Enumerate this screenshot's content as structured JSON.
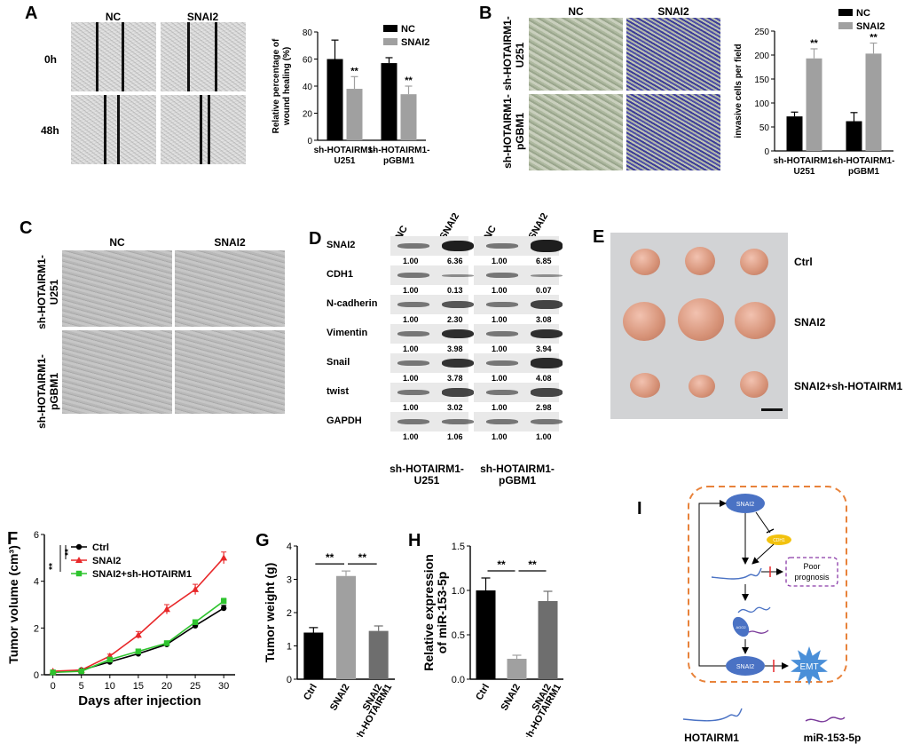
{
  "panels": {
    "A": {
      "label": "A",
      "col_headers": [
        "NC",
        "SNAI2"
      ],
      "row_headers": [
        "0h",
        "48h"
      ],
      "chart_data": {
        "type": "bar",
        "categories": [
          "sh-HOTAIRM1-\nU251",
          "sh-HOTAIRM1-\npGBM1"
        ],
        "categories_lines": [
          [
            "sh-HOTAIRM1-",
            "U251"
          ],
          [
            "sh-HOTAIRM1-",
            "pGBM1"
          ]
        ],
        "series": [
          {
            "name": "NC",
            "values": [
              60,
              57
            ],
            "errors": [
              14,
              4
            ],
            "color": "#000000"
          },
          {
            "name": "SNAI2",
            "values": [
              38,
              34
            ],
            "errors": [
              9,
              6
            ],
            "color": "#a0a0a0"
          }
        ],
        "ylabel_lines": [
          "Relative percentage of",
          "wound healing (%)"
        ],
        "ylim": [
          0,
          80
        ],
        "yticks": [
          0,
          20,
          40,
          60,
          80
        ],
        "significance": [
          "**",
          "**"
        ],
        "legend": "top-right"
      }
    },
    "B": {
      "label": "B",
      "col_headers": [
        "NC",
        "SNAI2"
      ],
      "row_headers": [
        "sh-HOTAIRM1-\nU251",
        "sh-HOTAIRM1-\npGBM1"
      ],
      "row_header_lines": [
        [
          "sh-HOTAIRM1-",
          "U251"
        ],
        [
          "sh-HOTAIRM1-",
          "pGBM1"
        ]
      ],
      "chart_data": {
        "type": "bar",
        "categories_lines": [
          [
            "sh-HOTAIRM1-",
            "U251"
          ],
          [
            "sh-HOTAIRM1-",
            "pGBM1"
          ]
        ],
        "series": [
          {
            "name": "NC",
            "values": [
              72,
              62
            ],
            "errors": [
              9,
              18
            ],
            "color": "#000000"
          },
          {
            "name": "SNAI2",
            "values": [
              193,
              203
            ],
            "errors": [
              20,
              22
            ],
            "color": "#a0a0a0"
          }
        ],
        "ylabel": "invasive cells per field",
        "ylim": [
          0,
          250
        ],
        "yticks": [
          0,
          50,
          100,
          150,
          200,
          250
        ],
        "significance": [
          "**",
          "**"
        ],
        "legend": "top-right"
      }
    },
    "C": {
      "label": "C",
      "col_headers": [
        "NC",
        "SNAI2"
      ],
      "row_header_lines": [
        [
          "sh-HOTAIRM1-",
          "U251"
        ],
        [
          "sh-HOTAIRM1-",
          "pGBM1"
        ]
      ]
    },
    "D": {
      "label": "D",
      "lane_headers": [
        "NC",
        "SNAI2",
        "NC",
        "SNAI2"
      ],
      "proteins": [
        {
          "name": "SNAI2",
          "values": [
            "1.00",
            "6.36",
            "1.00",
            "6.85"
          ]
        },
        {
          "name": "CDH1",
          "values": [
            "1.00",
            "0.13",
            "1.00",
            "0.07"
          ]
        },
        {
          "name": "N-cadherin",
          "values": [
            "1.00",
            "2.30",
            "1.00",
            "3.08"
          ]
        },
        {
          "name": "Vimentin",
          "values": [
            "1.00",
            "3.98",
            "1.00",
            "3.94"
          ]
        },
        {
          "name": "Snail",
          "values": [
            "1.00",
            "3.78",
            "1.00",
            "4.08"
          ]
        },
        {
          "name": "twist",
          "values": [
            "1.00",
            "3.02",
            "1.00",
            "2.98"
          ]
        },
        {
          "name": "GAPDH",
          "values": [
            "1.00",
            "1.06",
            "1.00",
            "1.00"
          ]
        }
      ],
      "group_labels": [
        [
          "sh-HOTAIRM1-",
          "U251"
        ],
        [
          "sh-HOTAIRM1-",
          "pGBM1"
        ]
      ]
    },
    "E": {
      "label": "E",
      "group_labels": [
        "Ctrl",
        "SNAI2",
        "SNAI2+sh-HOTAIRM1"
      ]
    },
    "F": {
      "label": "F",
      "chart_data": {
        "type": "line",
        "x": [
          0,
          5,
          10,
          15,
          20,
          25,
          30
        ],
        "series": [
          {
            "name": "Ctrl",
            "values": [
              0.1,
              0.2,
              0.55,
              0.9,
              1.3,
              2.1,
              2.85
            ],
            "errors": [
              0.05,
              0.05,
              0.05,
              0.08,
              0.1,
              0.1,
              0.12
            ],
            "color": "#000000",
            "marker": "circle"
          },
          {
            "name": "SNAI2",
            "values": [
              0.15,
              0.2,
              0.8,
              1.7,
              2.8,
              3.65,
              5.0
            ],
            "errors": [
              0.05,
              0.05,
              0.08,
              0.15,
              0.2,
              0.22,
              0.25
            ],
            "color": "#e8282a",
            "marker": "triangle"
          },
          {
            "name": "SNAI2+sh-HOTAIRM1",
            "values": [
              0.1,
              0.15,
              0.65,
              1.0,
              1.35,
              2.25,
              3.15
            ],
            "errors": [
              0.05,
              0.05,
              0.05,
              0.08,
              0.1,
              0.1,
              0.12
            ],
            "color": "#2ec42e",
            "marker": "square"
          }
        ],
        "xlabel": "Days after injection",
        "ylabel": "Tumor volume (cm³)",
        "xticks": [
          0,
          5,
          10,
          15,
          20,
          25,
          30
        ],
        "yticks": [
          0,
          2,
          4,
          6
        ],
        "xlim": [
          -1.5,
          32
        ],
        "ylim": [
          0,
          6
        ],
        "significance": [
          "**",
          "**"
        ],
        "legend": "top-left"
      }
    },
    "G": {
      "label": "G",
      "chart_data": {
        "type": "bar",
        "categories": [
          "Ctrl",
          "SNAI2",
          "SNAI2\n+sh-HOTAIRM1"
        ],
        "categories_lines": [
          [
            "Ctrl"
          ],
          [
            "SNAI2"
          ],
          [
            "SNAI2",
            "+sh-HOTAIRM1"
          ]
        ],
        "values": [
          1.4,
          3.1,
          1.45
        ],
        "errors": [
          0.15,
          0.15,
          0.15
        ],
        "colors": [
          "#000000",
          "#a0a0a0",
          "#6e6e6e"
        ],
        "ylabel": "Tumor weight (g)",
        "ylim": [
          0,
          4
        ],
        "yticks": [
          0,
          1,
          2,
          3,
          4
        ],
        "significance": [
          "**",
          "**"
        ]
      }
    },
    "H": {
      "label": "H",
      "chart_data": {
        "type": "bar",
        "categories_lines": [
          [
            "Ctrl"
          ],
          [
            "SNAI2"
          ],
          [
            "SNAI2",
            "+sh-HOTAIRM1"
          ]
        ],
        "values": [
          1.0,
          0.23,
          0.88
        ],
        "errors": [
          0.14,
          0.04,
          0.11
        ],
        "colors": [
          "#000000",
          "#a0a0a0",
          "#6e6e6e"
        ],
        "ylabel_lines": [
          "Relative expression",
          "of miR-153-5p"
        ],
        "ylim": [
          0,
          1.5
        ],
        "yticks": [
          "0.0",
          "0.5",
          "1.0",
          "1.5"
        ],
        "yticks_values": [
          0,
          0.5,
          1.0,
          1.5
        ],
        "significance": [
          "**",
          "**"
        ]
      }
    },
    "I": {
      "label": "I",
      "node_snai2": "SNAI2",
      "node_cdh1": "CDH1",
      "node_poor": [
        "Poor",
        "prognosis"
      ],
      "node_emt": "EMT",
      "node_ago": "AGO2",
      "legend_hotairm1": "HOTAIRM1",
      "legend_mir": "miR-153-5p",
      "colors": {
        "node": "#4a72c4",
        "cdh1": "#f2c20e",
        "frame": "#e8823a",
        "poor": "#8a3aa8",
        "mir": "#7a3a9a",
        "inhib": "#e8282a"
      }
    }
  }
}
